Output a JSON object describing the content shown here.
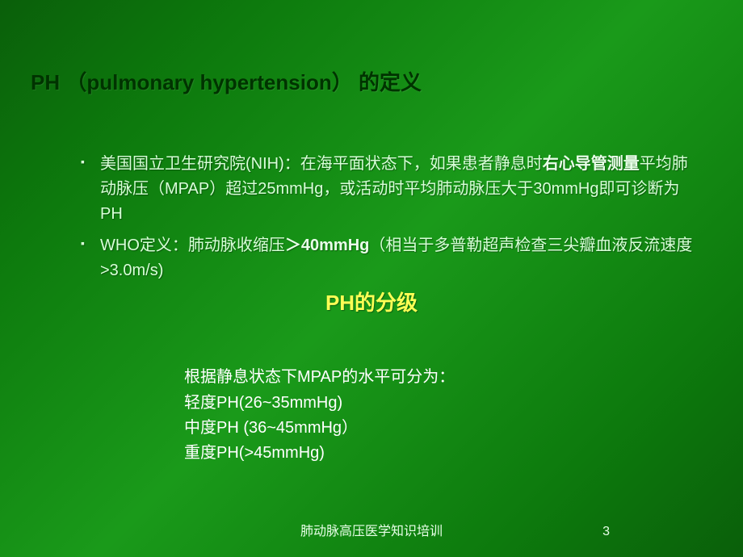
{
  "title": "PH （pulmonary hypertension） 的定义",
  "bullets": [
    {
      "pre": "美国国立卫生研究院(NIH)：在海平面状态下，如果患者静息时",
      "bold": "右心导管测量",
      "post": "平均肺动脉压（MPAP）超过25mmHg，或活动时平均肺动脉压大于30mmHg即可诊断为PH"
    },
    {
      "pre": "WHO定义：肺动脉收缩压",
      "bold": "＞40mmHg",
      "post": "（相当于多普勒超声检查三尖瓣血液反流速度>3.0m/s)"
    }
  ],
  "subtitle": "PH的分级",
  "gradingIntro": "根据静息状态下MPAP的水平可分为：",
  "gradingLevels": [
    "轻度PH(26~35mmHg)",
    "中度PH (36~45mmHg）",
    "重度PH(>45mmHg)"
  ],
  "footer": "肺动脉高压医学知识培训",
  "pageNumber": "3",
  "colors": {
    "background_start": "#0a5f0a",
    "background_mid": "#1a9a1a",
    "title_color": "#003300",
    "body_text": "#d8ffd8",
    "subtitle_color": "#ffff55",
    "white_text": "#ffffff"
  },
  "typography": {
    "title_fontsize": 26,
    "body_fontsize": 20,
    "subtitle_fontsize": 26,
    "footer_fontsize": 16
  }
}
